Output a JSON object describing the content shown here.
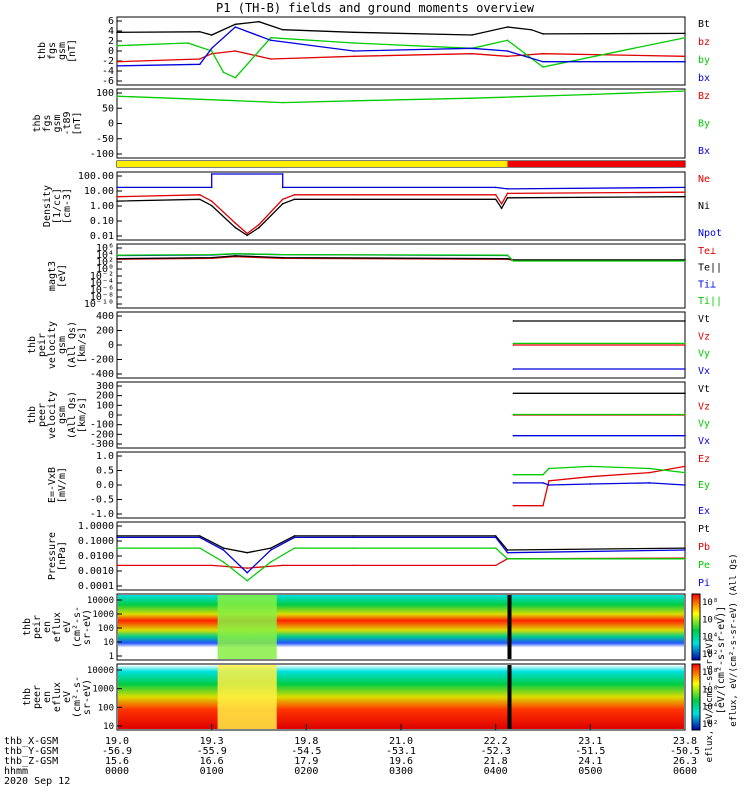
{
  "title": "P1 (TH-B) fields and ground moments overview",
  "colors": {
    "black": "#000000",
    "red": "#e00000",
    "green": "#00cc00",
    "blue": "#0000dd",
    "yellow": "#ffee00",
    "barred": "#ee0000"
  },
  "chart_data": [
    {
      "type": "line",
      "panel": "fgs-mag",
      "ylabel": [
        "thb",
        "fgs",
        "gsm",
        "[nT]"
      ],
      "ylim": [
        -6,
        6
      ],
      "yticks": [
        "6",
        "4",
        "2",
        "0",
        "-2",
        "-4",
        "-6"
      ],
      "series": [
        {
          "name": "Bt",
          "color": "black",
          "x": [
            19.0,
            19.7,
            19.8,
            20.0,
            20.2,
            20.4,
            21.0,
            22.0,
            22.3,
            22.5,
            22.6,
            23.8
          ],
          "y": [
            3.5,
            3.6,
            3.0,
            5.0,
            5.5,
            4.0,
            3.5,
            3.0,
            4.5,
            4.0,
            3.2,
            3.3
          ]
        },
        {
          "name": "bz",
          "color": "red",
          "x": [
            19.0,
            19.7,
            19.8,
            20.0,
            20.3,
            21.0,
            22.0,
            22.3,
            22.6,
            23.8
          ],
          "y": [
            -2.0,
            -1.5,
            -0.5,
            0.0,
            -1.5,
            -1.0,
            -0.5,
            -1.0,
            -0.5,
            -1.0
          ]
        },
        {
          "name": "by",
          "color": "green",
          "x": [
            19.0,
            19.6,
            19.8,
            19.9,
            20.0,
            20.3,
            21.0,
            22.0,
            22.3,
            22.6,
            23.8
          ],
          "y": [
            1.0,
            1.5,
            0.0,
            -4.0,
            -5.0,
            2.5,
            1.5,
            0.5,
            2.0,
            -3.0,
            2.5
          ]
        },
        {
          "name": "bx",
          "color": "blue",
          "x": [
            19.0,
            19.7,
            19.8,
            20.0,
            20.3,
            21.0,
            22.0,
            22.3,
            22.6,
            23.8
          ],
          "y": [
            -2.8,
            -2.5,
            0.5,
            4.5,
            2.0,
            0.0,
            0.5,
            0.0,
            -2.0,
            -2.0
          ]
        }
      ]
    },
    {
      "type": "line",
      "panel": "fgs-mag-t89",
      "ylabel": [
        "thb",
        "fgs",
        "gsm",
        "-t89",
        "[nT]"
      ],
      "ylim": [
        -125,
        100
      ],
      "yticks": [
        "100",
        "50",
        "0",
        "-50",
        "-100"
      ],
      "series": [
        {
          "name": "Bz",
          "color": "red",
          "x": [],
          "y": []
        },
        {
          "name": "By",
          "color": "green",
          "x": [
            19.0,
            19.9,
            20.4,
            21.0,
            22.0,
            23.0,
            23.8
          ],
          "y": [
            82,
            68,
            60,
            66,
            75,
            88,
            100
          ]
        },
        {
          "name": "Bx",
          "color": "blue",
          "x": [],
          "y": []
        }
      ]
    },
    {
      "type": "bar",
      "panel": "mode-bar",
      "segments": [
        {
          "from": 19.0,
          "to": 22.3,
          "color": "yellow"
        },
        {
          "from": 22.3,
          "to": 23.8,
          "color": "barred"
        }
      ]
    },
    {
      "type": "line",
      "panel": "density",
      "yscale": "log",
      "ylabel": [
        "Density",
        "[1/cc]",
        "[cm-3]"
      ],
      "ylim": [
        0.01,
        200
      ],
      "yticks": [
        "100.00",
        "10.00",
        "1.00",
        "0.10",
        "0.01"
      ],
      "series": [
        {
          "name": "Ne",
          "color": "red",
          "x": [
            19.0,
            19.7,
            19.8,
            20.0,
            20.1,
            20.2,
            20.4,
            20.5,
            21.0,
            22.2,
            22.25,
            22.3,
            23.8
          ],
          "y": [
            6,
            8,
            3,
            0.1,
            0.02,
            0.08,
            4,
            8,
            8,
            8,
            2,
            10,
            12
          ]
        },
        {
          "name": "Ni",
          "color": "black",
          "x": [
            19.0,
            19.7,
            19.8,
            20.0,
            20.1,
            20.2,
            20.4,
            20.5,
            21.0,
            22.2,
            22.25,
            22.3,
            23.8
          ],
          "y": [
            3,
            4,
            1.5,
            0.05,
            0.015,
            0.05,
            2,
            4,
            4,
            4,
            1,
            5,
            6
          ]
        },
        {
          "name": "Npot",
          "color": "blue",
          "x": [
            19.0,
            19.8,
            19.8,
            20.4,
            20.4,
            22.2,
            22.3,
            23.8
          ],
          "y": [
            25,
            25,
            200,
            200,
            25,
            25,
            20,
            25
          ]
        }
      ]
    },
    {
      "type": "line",
      "panel": "temperature",
      "yscale": "log",
      "ylabel": [
        "magt3",
        "[eV]"
      ],
      "ylim": [
        1e-10,
        1000000.0
      ],
      "yticks": [
        "10⁶",
        "10⁴",
        "10²",
        "10⁰",
        "10⁻²",
        "10⁻⁴",
        "10⁻⁶",
        "10⁻⁸",
        "10⁻¹⁰"
      ],
      "series": [
        {
          "name": "Te⊥",
          "color": "red",
          "x": [
            19.0,
            19.8,
            20.0,
            20.4,
            22.3,
            22.35,
            23.8
          ],
          "y": [
            300,
            500,
            1500,
            500,
            300,
            150,
            150
          ]
        },
        {
          "name": "Te||",
          "color": "black",
          "x": [
            19.0,
            19.8,
            20.0,
            20.4,
            22.3,
            22.35,
            23.8
          ],
          "y": [
            400,
            800,
            2500,
            800,
            400,
            200,
            200
          ]
        },
        {
          "name": "Ti⊥",
          "color": "blue",
          "x": [
            19.0,
            19.8,
            20.0,
            20.4,
            22.3
          ],
          "y": [
            3000,
            4000,
            8000,
            5000,
            3000
          ]
        },
        {
          "name": "Ti||",
          "color": "green",
          "x": [
            19.0,
            19.8,
            20.0,
            20.4,
            22.3,
            22.35,
            23.8
          ],
          "y": [
            3500,
            5000,
            9000,
            5000,
            3500,
            100,
            100
          ]
        }
      ]
    },
    {
      "type": "line",
      "panel": "peir-velocity",
      "ylabel": [
        "thb",
        "peir",
        "velocity",
        "gsm",
        "(All Qs)",
        "[km/s]"
      ],
      "ylim": [
        -400,
        400
      ],
      "yticks": [
        "400",
        "200",
        "0",
        "-200",
        "-400"
      ],
      "series": [
        {
          "name": "Vt",
          "color": "black",
          "x": [
            22.35,
            23.8
          ],
          "y": [
            310,
            310
          ]
        },
        {
          "name": "Vz",
          "color": "red",
          "x": [
            22.35,
            23.8
          ],
          "y": [
            0,
            0
          ]
        },
        {
          "name": "Vy",
          "color": "green",
          "x": [
            22.35,
            23.8
          ],
          "y": [
            20,
            20
          ]
        },
        {
          "name": "Vx",
          "color": "blue",
          "x": [
            22.35,
            23.8
          ],
          "y": [
            -310,
            -310
          ]
        }
      ]
    },
    {
      "type": "line",
      "panel": "peer-velocity",
      "ylabel": [
        "thb",
        "peer",
        "velocity",
        "gsm",
        "(All Qs)",
        "[km/s]"
      ],
      "ylim": [
        -300,
        300
      ],
      "yticks": [
        "300",
        "200",
        "100",
        "0",
        "-100",
        "-200",
        "-300"
      ],
      "series": [
        {
          "name": "Vt",
          "color": "black",
          "x": [
            22.35,
            23.8
          ],
          "y": [
            210,
            210
          ]
        },
        {
          "name": "Vz",
          "color": "red",
          "x": [
            22.35,
            23.8
          ],
          "y": [
            0,
            0
          ]
        },
        {
          "name": "Vy",
          "color": "green",
          "x": [
            22.35,
            23.8
          ],
          "y": [
            5,
            5
          ]
        },
        {
          "name": "Vx",
          "color": "blue",
          "x": [
            22.35,
            23.8
          ],
          "y": [
            -200,
            -200
          ]
        }
      ]
    },
    {
      "type": "line",
      "panel": "e-field",
      "ylabel": [
        "E=-VxB",
        "[mV/m]"
      ],
      "ylim": [
        -1.5,
        1.5
      ],
      "yticks": [
        "1.0",
        "0.5",
        "0.0",
        "-0.5",
        "-1.0"
      ],
      "series": [
        {
          "name": "Ez",
          "color": "red",
          "x": [
            22.35,
            22.6,
            22.65,
            23.0,
            23.5,
            23.8
          ],
          "y": [
            -1.0,
            -1.0,
            0.2,
            0.4,
            0.6,
            0.9
          ]
        },
        {
          "name": "Ey",
          "color": "green",
          "x": [
            22.35,
            22.6,
            22.65,
            23.0,
            23.5,
            23.8
          ],
          "y": [
            0.5,
            0.5,
            0.8,
            0.9,
            0.8,
            0.6
          ]
        },
        {
          "name": "Ex",
          "color": "blue",
          "x": [
            22.35,
            22.6,
            22.65,
            23.0,
            23.5,
            23.8
          ],
          "y": [
            0.1,
            0.1,
            0.0,
            0.05,
            0.1,
            0.0
          ]
        }
      ]
    },
    {
      "type": "line",
      "panel": "pressure",
      "yscale": "log",
      "ylabel": [
        "Pressure",
        "[nPa]"
      ],
      "ylim": [
        0.0001,
        1.5
      ],
      "yticks": [
        "1.0000",
        "0.1000",
        "0.0100",
        "0.0010",
        "0.0001"
      ],
      "series": [
        {
          "name": "Pt",
          "color": "black",
          "x": [
            19.0,
            19.7,
            19.9,
            20.1,
            20.3,
            20.5,
            21.0,
            22.2,
            22.3,
            23.8
          ],
          "y": [
            0.25,
            0.25,
            0.04,
            0.02,
            0.04,
            0.25,
            0.25,
            0.25,
            0.03,
            0.04
          ]
        },
        {
          "name": "Pb",
          "color": "red",
          "x": [
            19.0,
            19.8,
            20.1,
            20.4,
            21.0,
            22.2,
            22.3,
            23.8
          ],
          "y": [
            0.003,
            0.003,
            0.002,
            0.003,
            0.003,
            0.003,
            0.008,
            0.009
          ]
        },
        {
          "name": "Pe",
          "color": "green",
          "x": [
            19.0,
            19.7,
            19.9,
            20.1,
            20.3,
            20.5,
            21.0,
            22.2,
            22.3,
            23.8
          ],
          "y": [
            0.04,
            0.04,
            0.005,
            0.0003,
            0.005,
            0.04,
            0.04,
            0.04,
            0.008,
            0.008
          ]
        },
        {
          "name": "Pi",
          "color": "blue",
          "x": [
            19.0,
            19.7,
            19.9,
            20.1,
            20.3,
            20.5,
            21.0,
            22.2,
            22.3,
            23.8
          ],
          "y": [
            0.2,
            0.2,
            0.03,
            0.001,
            0.03,
            0.2,
            0.2,
            0.2,
            0.02,
            0.03
          ]
        }
      ]
    },
    {
      "type": "heatmap",
      "panel": "peir-spectrogram",
      "ylabel": [
        "thb",
        "peir",
        "en",
        "eflux",
        "eV",
        "(cm²-s-",
        "sr-eV)"
      ],
      "yticks": [
        "10000",
        "1000",
        "100",
        "10",
        "1"
      ],
      "colorbar_ticks": [
        "10⁸",
        "10⁶",
        "10⁴",
        "10²"
      ]
    },
    {
      "type": "heatmap",
      "panel": "peer-spectrogram",
      "ylabel": [
        "thb",
        "peer",
        "en",
        "eflux",
        "eV",
        "(cm²-s-",
        "sr-eV)"
      ],
      "yticks": [
        "10000",
        "1000",
        "100",
        "10"
      ],
      "colorbar_ticks": [
        "10⁸",
        "10⁶",
        "10⁴",
        "10²"
      ]
    }
  ],
  "colorbar_label": "[eV/(cm²-s-sr-eV)]",
  "colorbar_label_2": "eflux, eV/(cm²-s-sr-eV) (All Qs)",
  "colorbar_label_3": "eflux, eV/(cm²-s-sr-eV)",
  "xaxis": {
    "rows": [
      {
        "label": "thb_X-GSM",
        "values": [
          "19.0",
          "19.3",
          "19.8",
          "21.0",
          "22.2",
          "23.1",
          "23.8"
        ]
      },
      {
        "label": "thb_Y-GSM",
        "values": [
          "-56.9",
          "-55.9",
          "-54.5",
          "-53.1",
          "-52.3",
          "-51.5",
          "-50.5"
        ]
      },
      {
        "label": "thb_Z-GSM",
        "values": [
          "15.6",
          "16.6",
          "17.9",
          "19.6",
          "21.8",
          "24.1",
          "26.3"
        ]
      },
      {
        "label": "hhmm",
        "values": [
          "0000",
          "0100",
          "0200",
          "0300",
          "0400",
          "0500",
          "0600"
        ]
      }
    ],
    "date": "2020 Sep 12"
  }
}
